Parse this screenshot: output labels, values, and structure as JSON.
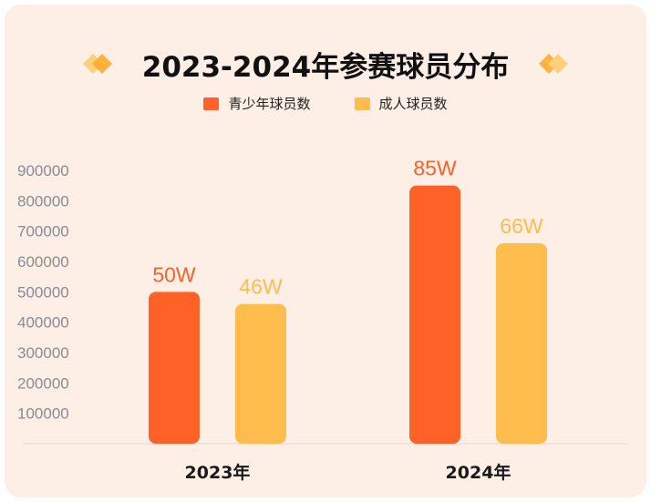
{
  "title": "2023-2024年参赛球员分布",
  "colors": {
    "background": "#fdeee6",
    "youth": "#ff6126",
    "adult": "#ffbd4d"
  },
  "chart_data": {
    "type": "bar",
    "title": "2023-2024年参赛球员分布",
    "categories": [
      "2023年",
      "2024年"
    ],
    "series": [
      {
        "name": "青少年球员数",
        "values": [
          500000,
          850000
        ],
        "labels": [
          "50W",
          "85W"
        ],
        "color": "#ff6126"
      },
      {
        "name": "成人球员数",
        "values": [
          460000,
          660000
        ],
        "labels": [
          "46W",
          "66W"
        ],
        "color": "#ffbd4d"
      }
    ],
    "yticks": [
      100000,
      200000,
      300000,
      400000,
      500000,
      600000,
      700000,
      800000,
      900000
    ],
    "ylim": [
      0,
      900000
    ],
    "legend": "top-center",
    "grid": false
  }
}
